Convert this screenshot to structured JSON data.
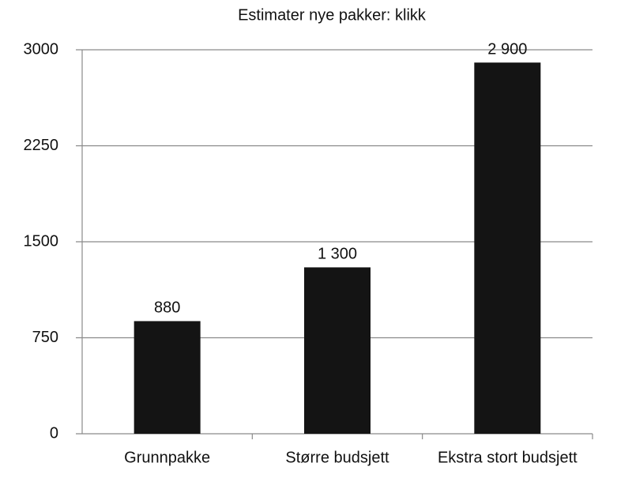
{
  "chart_data": {
    "type": "bar",
    "title": "Estimater nye pakker: klikk",
    "categories": [
      "Grunnpakke",
      "Større budsjett",
      "Ekstra stort budsjett"
    ],
    "values": [
      880,
      1300,
      2900
    ],
    "value_labels": [
      "880",
      "1 300",
      "2 900"
    ],
    "color": "#141414",
    "ylim": [
      0,
      3000
    ],
    "yticks": [
      0,
      750,
      1500,
      2250,
      3000
    ],
    "grid": true
  }
}
